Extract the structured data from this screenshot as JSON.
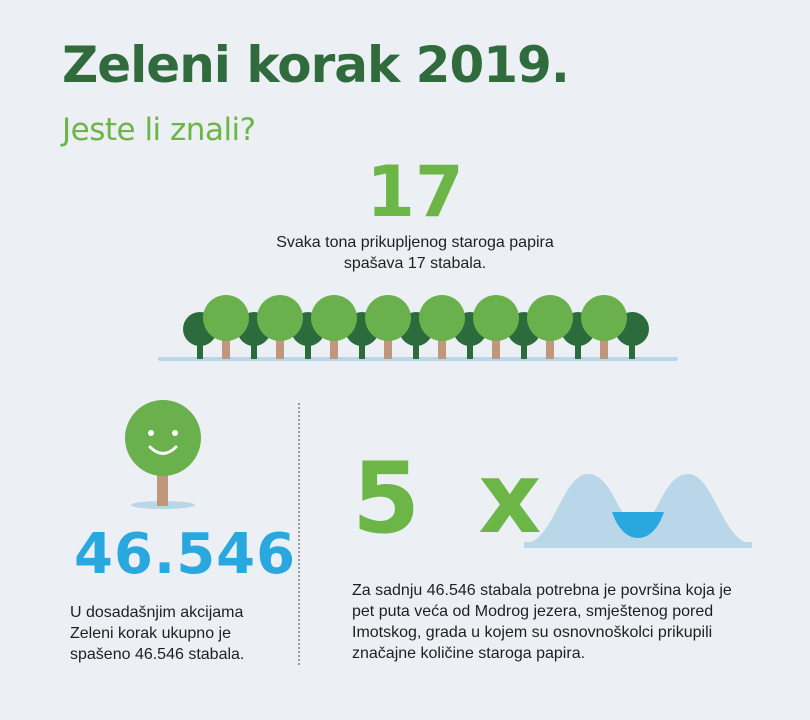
{
  "header": {
    "title": "Zeleni korak 2019.",
    "subtitle": "Jeste li znali?"
  },
  "fact_trees": {
    "number": "17",
    "text": "Svaka tona prikupljenog staroga papira spašava 17 stabala."
  },
  "fact_saved": {
    "number": "46.546",
    "text": "U dosadašnjim akcijama Zeleni korak ukupno je spašeno 46.546 stabala."
  },
  "fact_lake": {
    "number": "5 x",
    "text": "Za sadnju 46.546 stabala potrebna je površina koja je pet puta veća od Modrog jezera, smještenog pored Imotskog, grada u kojem su osnovnoškolci prikupili značajne količine staroga papira."
  },
  "colors": {
    "dark_green": "#2f6b3c",
    "light_green": "#6cb647",
    "forest_light": "#6ab04c",
    "forest_dark": "#2c6b3c",
    "trunk": "#c0977a",
    "blue": "#29a8e0",
    "light_blue": "#b9d7e8",
    "background": "#ecf0f5"
  },
  "icons": {
    "forest": "tree-row-icon",
    "smiley_tree": "smiling-tree-icon",
    "lake": "lake-hills-icon"
  }
}
